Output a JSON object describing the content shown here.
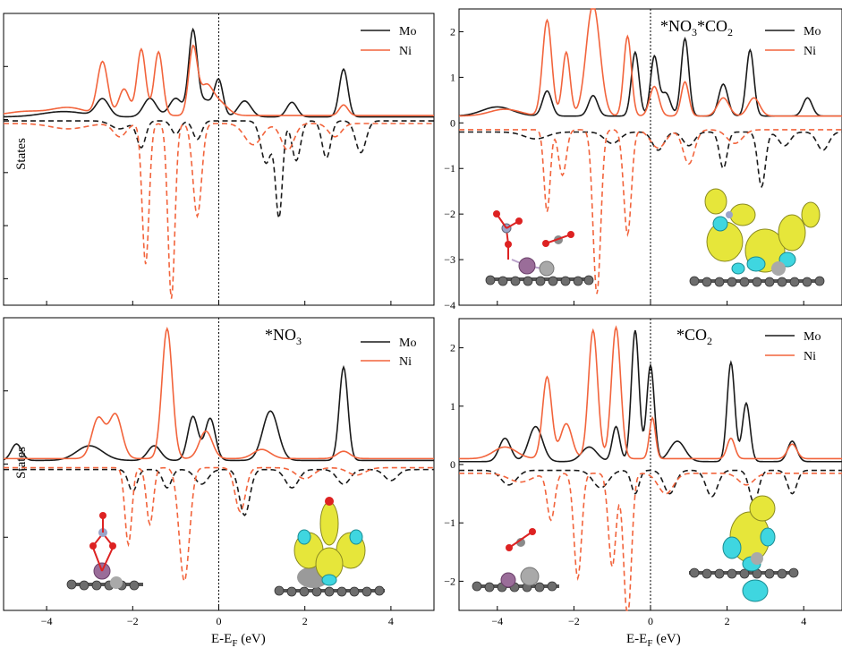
{
  "figure": {
    "ylabel": "States",
    "xlabel_left": "E-E",
    "xlabel_sub": "F",
    "xlabel_unit": " (eV)"
  },
  "colors": {
    "mo": "#1a1a1a",
    "ni": "#f2643c"
  },
  "chart_data": [
    {
      "id": "top-left",
      "type": "line",
      "annotation": null,
      "legend": [
        "Mo",
        "Ni"
      ],
      "xlim": [
        -5,
        5
      ],
      "ylim": [
        -7,
        4
      ],
      "xticks": [
        -4,
        -2,
        0,
        2,
        4
      ],
      "yticks": [
        -6,
        -4,
        -2,
        0,
        2,
        4
      ],
      "xtick_labels_visible": false,
      "fermi_line_x": 0,
      "series": [
        {
          "name": "Mo",
          "spin": "up",
          "style": "solid",
          "baseline": 0.1,
          "amp_floor": 0,
          "peaks": [
            [
              -3.6,
              0.2,
              0.5
            ],
            [
              -2.7,
              0.65,
              0.15
            ],
            [
              -1.6,
              0.7,
              0.15
            ],
            [
              -1.0,
              0.7,
              0.15
            ],
            [
              -0.6,
              3.2,
              0.1
            ],
            [
              -0.3,
              0.6,
              0.15
            ],
            [
              0.0,
              1.35,
              0.1
            ],
            [
              0.6,
              0.6,
              0.15
            ],
            [
              1.7,
              0.55,
              0.12
            ],
            [
              2.9,
              1.8,
              0.1
            ]
          ]
        },
        {
          "name": "Mo",
          "spin": "down",
          "style": "dashed",
          "baseline": -0.05,
          "amp_floor": 0,
          "peaks": [
            [
              -2.3,
              0.3,
              0.2
            ],
            [
              -1.8,
              1.0,
              0.1
            ],
            [
              -1.0,
              0.5,
              0.1
            ],
            [
              -0.5,
              0.7,
              0.1
            ],
            [
              1.1,
              1.6,
              0.12
            ],
            [
              1.4,
              3.6,
              0.08
            ],
            [
              1.8,
              1.5,
              0.1
            ],
            [
              2.5,
              1.4,
              0.1
            ],
            [
              3.3,
              1.2,
              0.12
            ]
          ]
        },
        {
          "name": "Ni",
          "spin": "up",
          "style": "solid",
          "baseline": 0.15,
          "amp_floor": 0,
          "peaks": [
            [
              -4.5,
              0.15,
              0.4
            ],
            [
              -3.5,
              0.3,
              0.4
            ],
            [
              -2.7,
              2.0,
              0.12
            ],
            [
              -2.2,
              1.0,
              0.12
            ],
            [
              -1.8,
              2.5,
              0.1
            ],
            [
              -1.4,
              2.4,
              0.1
            ],
            [
              -0.6,
              2.5,
              0.1
            ],
            [
              -0.3,
              1.0,
              0.15
            ],
            [
              0.0,
              0.5,
              0.2
            ],
            [
              2.9,
              0.4,
              0.1
            ]
          ]
        },
        {
          "name": "Ni",
          "spin": "down",
          "style": "dashed",
          "baseline": -0.15,
          "amp_floor": 0,
          "peaks": [
            [
              -3.5,
              0.2,
              0.4
            ],
            [
              -2.3,
              0.5,
              0.15
            ],
            [
              -1.7,
              5.3,
              0.08
            ],
            [
              -1.1,
              6.6,
              0.08
            ],
            [
              -0.5,
              3.5,
              0.1
            ],
            [
              0.8,
              0.8,
              0.2
            ],
            [
              1.6,
              1.0,
              0.15
            ],
            [
              2.7,
              0.5,
              0.15
            ]
          ]
        }
      ]
    },
    {
      "id": "top-right",
      "type": "line",
      "annotation": "*NO3*CO2",
      "legend": [
        "Mo",
        "Ni"
      ],
      "xlim": [
        -5,
        5
      ],
      "ylim": [
        -4,
        2.5
      ],
      "xticks": [
        -4,
        -2,
        0,
        2,
        4
      ],
      "yticks": [
        -4,
        -3,
        -2,
        -1,
        0,
        1,
        2
      ],
      "xtick_labels_visible": false,
      "fermi_line_x": 0,
      "series": [
        {
          "name": "Mo",
          "spin": "up",
          "style": "solid",
          "baseline": 0.15,
          "amp_floor": 0,
          "peaks": [
            [
              -4.0,
              0.2,
              0.4
            ],
            [
              -2.7,
              0.55,
              0.12
            ],
            [
              -1.5,
              0.45,
              0.12
            ],
            [
              -0.4,
              1.4,
              0.1
            ],
            [
              0.1,
              1.3,
              0.1
            ],
            [
              0.4,
              0.5,
              0.12
            ],
            [
              0.9,
              1.7,
              0.1
            ],
            [
              1.9,
              0.7,
              0.12
            ],
            [
              2.6,
              1.45,
              0.1
            ],
            [
              4.1,
              0.4,
              0.12
            ]
          ]
        },
        {
          "name": "Mo",
          "spin": "down",
          "style": "dashed",
          "baseline": -0.2,
          "amp_floor": 0,
          "peaks": [
            [
              -3.0,
              0.15,
              0.3
            ],
            [
              -1.0,
              0.25,
              0.2
            ],
            [
              0.2,
              0.4,
              0.15
            ],
            [
              1.0,
              0.3,
              0.15
            ],
            [
              1.9,
              0.8,
              0.1
            ],
            [
              2.9,
              1.2,
              0.1
            ],
            [
              3.5,
              0.3,
              0.15
            ],
            [
              4.5,
              0.4,
              0.15
            ]
          ]
        },
        {
          "name": "Ni",
          "spin": "up",
          "style": "solid",
          "baseline": 0.15,
          "amp_floor": 0,
          "peaks": [
            [
              -3.8,
              0.15,
              0.4
            ],
            [
              -2.7,
              2.1,
              0.12
            ],
            [
              -2.2,
              1.4,
              0.1
            ],
            [
              -1.5,
              2.45,
              0.18
            ],
            [
              -0.6,
              1.75,
              0.1
            ],
            [
              0.1,
              0.65,
              0.12
            ],
            [
              0.9,
              0.75,
              0.1
            ],
            [
              1.9,
              0.4,
              0.15
            ],
            [
              2.7,
              0.4,
              0.15
            ]
          ]
        },
        {
          "name": "Ni",
          "spin": "down",
          "style": "dashed",
          "baseline": -0.15,
          "amp_floor": 0,
          "peaks": [
            [
              -2.7,
              1.8,
              0.08
            ],
            [
              -2.3,
              1.0,
              0.1
            ],
            [
              -1.4,
              3.6,
              0.1
            ],
            [
              -0.6,
              2.3,
              0.1
            ],
            [
              0.2,
              0.4,
              0.2
            ],
            [
              1.0,
              0.75,
              0.15
            ],
            [
              2.2,
              0.3,
              0.2
            ]
          ]
        }
      ]
    },
    {
      "id": "bottom-left",
      "type": "line",
      "annotation": "*NO3",
      "legend": [
        "Mo",
        "Ni"
      ],
      "xlim": [
        -5,
        5
      ],
      "ylim": [
        -4,
        4
      ],
      "xticks": [
        -4,
        -2,
        0,
        2,
        4
      ],
      "yticks": [
        -4,
        -2,
        0,
        2,
        4
      ],
      "xtick_labels_visible": true,
      "fermi_line_x": 0,
      "series": [
        {
          "name": "Mo",
          "spin": "up",
          "style": "solid",
          "baseline": 0.1,
          "amp_floor": 0,
          "peaks": [
            [
              -4.7,
              0.45,
              0.12
            ],
            [
              -3.0,
              0.4,
              0.3
            ],
            [
              -1.5,
              0.4,
              0.15
            ],
            [
              -0.6,
              1.2,
              0.12
            ],
            [
              -0.2,
              1.15,
              0.12
            ],
            [
              1.2,
              1.35,
              0.18
            ],
            [
              2.9,
              2.55,
              0.1
            ]
          ]
        },
        {
          "name": "Mo",
          "spin": "down",
          "style": "dashed",
          "baseline": -0.15,
          "amp_floor": 0,
          "peaks": [
            [
              -2.0,
              0.6,
              0.1
            ],
            [
              -1.2,
              0.5,
              0.1
            ],
            [
              -0.4,
              0.4,
              0.15
            ],
            [
              0.6,
              1.25,
              0.12
            ],
            [
              1.7,
              0.5,
              0.15
            ],
            [
              2.9,
              0.4,
              0.15
            ],
            [
              4.0,
              0.3,
              0.15
            ]
          ]
        },
        {
          "name": "Ni",
          "spin": "up",
          "style": "solid",
          "baseline": 0.15,
          "amp_floor": 0,
          "peaks": [
            [
              -2.8,
              1.1,
              0.15
            ],
            [
              -2.4,
              1.2,
              0.15
            ],
            [
              -1.2,
              3.55,
              0.12
            ],
            [
              -0.3,
              0.75,
              0.15
            ],
            [
              1.0,
              0.25,
              0.2
            ],
            [
              2.9,
              0.2,
              0.15
            ]
          ]
        },
        {
          "name": "Ni",
          "spin": "down",
          "style": "dashed",
          "baseline": -0.1,
          "amp_floor": 0,
          "peaks": [
            [
              -2.1,
              2.1,
              0.08
            ],
            [
              -1.6,
              1.55,
              0.08
            ],
            [
              -0.8,
              3.1,
              0.12
            ],
            [
              0.5,
              1.2,
              0.12
            ],
            [
              2.0,
              0.3,
              0.2
            ],
            [
              3.2,
              0.2,
              0.2
            ]
          ]
        }
      ]
    },
    {
      "id": "bottom-right",
      "type": "line",
      "annotation": "*CO2",
      "legend": [
        "Mo",
        "Ni"
      ],
      "xlim": [
        -5,
        5
      ],
      "ylim": [
        -2.5,
        2.5
      ],
      "xticks": [
        -4,
        -2,
        0,
        2,
        4
      ],
      "yticks": [
        -2,
        -1,
        0,
        1,
        2
      ],
      "xtick_labels_visible": true,
      "fermi_line_x": 0,
      "series": [
        {
          "name": "Mo",
          "spin": "up",
          "style": "solid",
          "baseline": 0.05,
          "amp_floor": 0,
          "peaks": [
            [
              -3.8,
              0.4,
              0.15
            ],
            [
              -3.0,
              0.6,
              0.18
            ],
            [
              -1.6,
              0.25,
              0.2
            ],
            [
              -0.9,
              0.6,
              0.1
            ],
            [
              -0.4,
              2.25,
              0.1
            ],
            [
              0.0,
              1.65,
              0.1
            ],
            [
              0.7,
              0.35,
              0.2
            ],
            [
              2.1,
              1.7,
              0.1
            ],
            [
              2.5,
              1.0,
              0.1
            ],
            [
              3.7,
              0.35,
              0.12
            ]
          ]
        },
        {
          "name": "Mo",
          "spin": "down",
          "style": "dashed",
          "baseline": -0.1,
          "amp_floor": 0,
          "peaks": [
            [
              -3.7,
              0.25,
              0.2
            ],
            [
              -1.3,
              0.3,
              0.2
            ],
            [
              -0.4,
              0.4,
              0.1
            ],
            [
              0.5,
              0.4,
              0.15
            ],
            [
              1.6,
              0.45,
              0.15
            ],
            [
              2.7,
              0.55,
              0.12
            ],
            [
              3.7,
              0.4,
              0.12
            ]
          ]
        },
        {
          "name": "Ni",
          "spin": "up",
          "style": "solid",
          "baseline": 0.1,
          "amp_floor": 0,
          "peaks": [
            [
              -3.8,
              0.2,
              0.3
            ],
            [
              -2.7,
              1.4,
              0.12
            ],
            [
              -2.2,
              0.6,
              0.15
            ],
            [
              -1.5,
              2.2,
              0.12
            ],
            [
              -0.9,
              2.25,
              0.12
            ],
            [
              0.05,
              0.7,
              0.08
            ],
            [
              2.1,
              0.35,
              0.1
            ],
            [
              3.7,
              0.25,
              0.12
            ]
          ]
        },
        {
          "name": "Ni",
          "spin": "down",
          "style": "dashed",
          "baseline": -0.15,
          "amp_floor": 0,
          "peaks": [
            [
              -3.4,
              0.15,
              0.3
            ],
            [
              -2.6,
              0.8,
              0.1
            ],
            [
              -1.9,
              1.8,
              0.1
            ],
            [
              -1.0,
              1.6,
              0.1
            ],
            [
              -0.6,
              2.5,
              0.1
            ],
            [
              0.4,
              0.35,
              0.2
            ],
            [
              2.5,
              0.2,
              0.2
            ]
          ]
        }
      ]
    }
  ],
  "panels": [
    {
      "legend_mo": "Mo",
      "legend_ni": "Ni",
      "annot": "",
      "annot_sub": "",
      "annot2": "",
      "annot2_sub": ""
    },
    {
      "legend_mo": "Mo",
      "legend_ni": "Ni",
      "annot": "*NO",
      "annot_sub": "3",
      "annot2": "*CO",
      "annot2_sub": "2"
    },
    {
      "legend_mo": "Mo",
      "legend_ni": "Ni",
      "annot": "*NO",
      "annot_sub": "3",
      "annot2": "",
      "annot2_sub": ""
    },
    {
      "legend_mo": "Mo",
      "legend_ni": "Ni",
      "annot": "*CO",
      "annot_sub": "2",
      "annot2": "",
      "annot2_sub": ""
    }
  ]
}
